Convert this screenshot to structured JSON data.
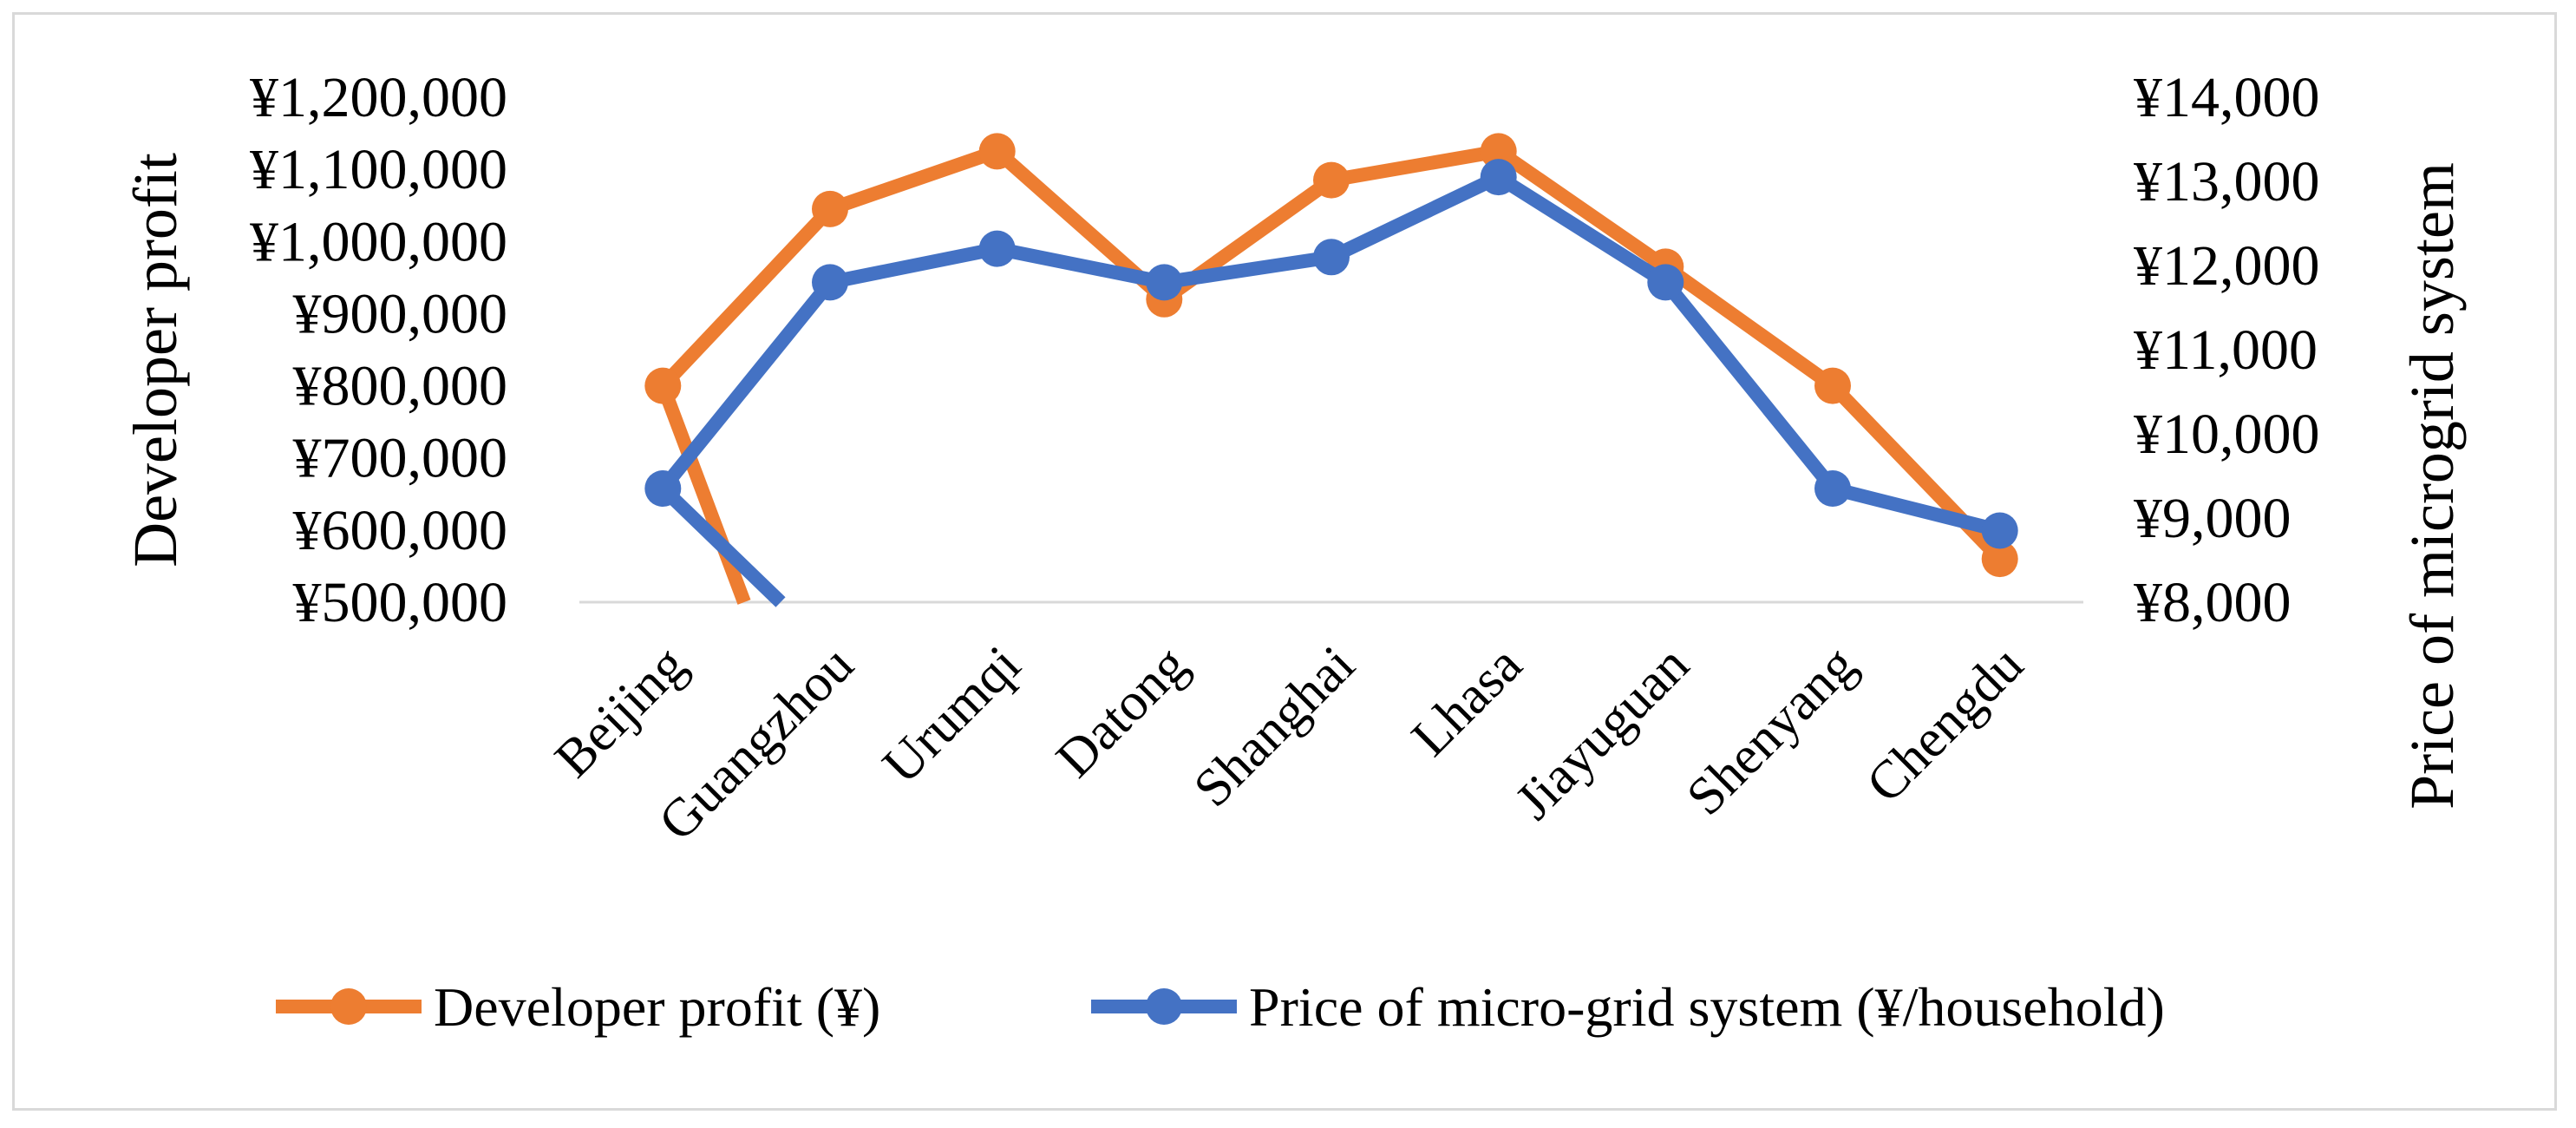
{
  "chart_data": {
    "type": "line",
    "title": "",
    "categories": [
      "Beijing",
      "Guangzhou",
      "Urumqi",
      "Datong",
      "Shanghai",
      "Lhasa",
      "Jiayuguan",
      "Shenyang",
      "Chengdu"
    ],
    "series": [
      {
        "name": "Developer profit (¥)",
        "axis": "left",
        "color": "#ED7D31",
        "values": [
          800000,
          1045000,
          1125000,
          920000,
          1085000,
          1125000,
          965000,
          800000,
          560000
        ]
      },
      {
        "name": "Price of micro-grid system (¥/household)",
        "axis": "right",
        "color": "#4472C4",
        "values": [
          9350,
          11800,
          12200,
          11800,
          12100,
          13050,
          11800,
          9350,
          8850
        ]
      }
    ],
    "y_left": {
      "label": "Developer profit",
      "ylim": [
        500000,
        1200000
      ],
      "ticks": [
        500000,
        600000,
        700000,
        800000,
        900000,
        1000000,
        1100000,
        1200000
      ],
      "tick_labels": [
        "¥500,000",
        "¥600,000",
        "¥700,000",
        "¥800,000",
        "¥900,000",
        "¥1,000,000",
        "¥1,100,000",
        "¥1,200,000"
      ]
    },
    "y_right": {
      "label": "Price of microgrid system",
      "ylim": [
        8000,
        14000
      ],
      "ticks": [
        8000,
        9000,
        10000,
        11000,
        12000,
        13000,
        14000
      ],
      "tick_labels": [
        "¥8,000",
        "¥9,000",
        "¥10,000",
        "¥11,000",
        "¥12,000",
        "¥13,000",
        "¥14,000"
      ]
    },
    "legend": "bottom",
    "grid": false
  }
}
